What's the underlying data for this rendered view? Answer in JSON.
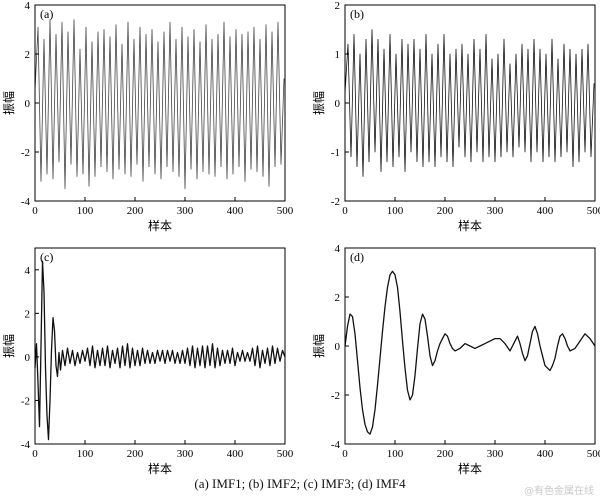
{
  "caption": "(a) IMF1; (b) IMF2; (c) IMF3; (d) IMF4",
  "watermark": "@有色金属在线",
  "chart_data": [
    {
      "type": "line",
      "panel_label": "(a)",
      "xlabel": "样本",
      "ylabel": "振幅",
      "xlim": [
        0,
        500
      ],
      "ylim": [
        -4,
        4
      ],
      "xticks": [
        0,
        100,
        200,
        300,
        400,
        500
      ],
      "yticks": [
        -4,
        -2,
        0,
        2,
        4
      ],
      "color": "#444444",
      "series": [
        {
          "x": [
            0,
            6,
            12,
            18,
            24,
            30,
            36,
            42,
            48,
            54,
            60,
            66,
            72,
            78,
            84,
            90,
            96,
            102,
            108,
            114,
            120,
            126,
            132,
            138,
            144,
            150,
            156,
            162,
            168,
            174,
            180,
            186,
            192,
            198,
            204,
            210,
            216,
            222,
            228,
            234,
            240,
            246,
            252,
            258,
            264,
            270,
            276,
            282,
            288,
            294,
            300,
            306,
            312,
            318,
            324,
            330,
            336,
            342,
            348,
            354,
            360,
            366,
            372,
            378,
            384,
            390,
            396,
            402,
            408,
            414,
            420,
            426,
            432,
            438,
            444,
            450,
            456,
            462,
            468,
            474,
            480,
            486,
            492,
            498
          ],
          "values": [
            0.5,
            3.1,
            -3.2,
            2.6,
            -2.9,
            3.4,
            -3.1,
            2.8,
            -2.4,
            3.3,
            -3.5,
            2.9,
            -2.5,
            3.4,
            -3.0,
            2.2,
            -2.9,
            3.1,
            -3.4,
            2.5,
            -3.0,
            2.9,
            -2.6,
            3.0,
            -2.8,
            2.7,
            -3.1,
            3.2,
            -2.7,
            2.4,
            -2.9,
            3.3,
            -3.0,
            2.6,
            -2.5,
            3.1,
            -3.2,
            2.8,
            -2.6,
            3.0,
            -2.9,
            2.5,
            -3.1,
            2.9,
            -2.6,
            3.3,
            -2.8,
            2.6,
            -3.0,
            3.1,
            -3.5,
            2.7,
            -2.7,
            3.0,
            -3.1,
            2.5,
            -2.8,
            3.2,
            -2.9,
            2.6,
            -3.0,
            2.8,
            -2.6,
            3.3,
            -3.1,
            2.7,
            -2.9,
            3.0,
            -2.6,
            2.8,
            -3.2,
            2.9,
            -2.7,
            3.1,
            -2.8,
            2.6,
            -3.0,
            3.2,
            -3.4,
            2.9,
            -2.6,
            3.3,
            -2.5,
            1.0
          ]
        }
      ]
    },
    {
      "type": "line",
      "panel_label": "(b)",
      "xlabel": "样本",
      "ylabel": "振幅",
      "xlim": [
        0,
        500
      ],
      "ylim": [
        -2,
        2
      ],
      "xticks": [
        0,
        100,
        200,
        300,
        400,
        500
      ],
      "yticks": [
        -2,
        -1,
        0,
        1,
        2
      ],
      "color": "#111111",
      "series": [
        {
          "x": [
            0,
            6,
            12,
            18,
            24,
            30,
            36,
            42,
            48,
            54,
            60,
            66,
            72,
            78,
            84,
            90,
            96,
            102,
            108,
            114,
            120,
            126,
            132,
            138,
            144,
            150,
            156,
            162,
            168,
            174,
            180,
            186,
            192,
            198,
            204,
            210,
            216,
            222,
            228,
            234,
            240,
            246,
            252,
            258,
            264,
            270,
            276,
            282,
            288,
            294,
            300,
            306,
            312,
            318,
            324,
            330,
            336,
            342,
            348,
            354,
            360,
            366,
            372,
            378,
            384,
            390,
            396,
            402,
            408,
            414,
            420,
            426,
            432,
            438,
            444,
            450,
            456,
            462,
            468,
            474,
            480,
            486,
            492,
            498
          ],
          "values": [
            0.2,
            1.2,
            -1.1,
            1.4,
            -1.3,
            1.0,
            -1.5,
            1.3,
            -1.2,
            1.5,
            -1.0,
            1.3,
            -1.4,
            1.1,
            -1.2,
            1.4,
            -1.3,
            1.0,
            -1.1,
            1.3,
            -1.4,
            1.2,
            -1.0,
            1.3,
            -1.2,
            1.1,
            -1.3,
            1.4,
            -1.2,
            1.0,
            -1.3,
            1.2,
            -1.1,
            1.4,
            -1.2,
            1.0,
            -1.3,
            1.1,
            -0.9,
            1.2,
            -1.1,
            1.0,
            -1.2,
            1.3,
            -1.0,
            1.1,
            -1.2,
            1.4,
            -1.1,
            0.9,
            -1.2,
            1.0,
            -1.1,
            1.3,
            -1.0,
            0.8,
            -1.1,
            1.0,
            -0.9,
            1.2,
            -1.0,
            1.1,
            -1.2,
            1.3,
            -1.0,
            1.1,
            -1.2,
            1.0,
            -1.1,
            1.3,
            -1.2,
            0.9,
            -1.1,
            1.2,
            -1.0,
            1.1,
            -1.3,
            1.0,
            -1.2,
            1.1,
            -1.0,
            1.2,
            -1.1,
            0.4
          ]
        }
      ]
    },
    {
      "type": "line",
      "panel_label": "(c)",
      "xlabel": "样本",
      "ylabel": "振幅",
      "xlim": [
        0,
        500
      ],
      "ylim": [
        -4,
        5
      ],
      "xticks": [
        0,
        100,
        200,
        300,
        400,
        500
      ],
      "yticks": [
        -4,
        -2,
        0,
        2,
        4
      ],
      "color": "#111111",
      "series": [
        {
          "x": [
            0,
            3,
            6,
            9,
            12,
            15,
            18,
            21,
            24,
            27,
            30,
            33,
            36,
            39,
            42,
            45,
            48,
            51,
            55,
            60,
            65,
            70,
            75,
            80,
            85,
            90,
            95,
            100,
            105,
            110,
            115,
            120,
            125,
            130,
            135,
            140,
            145,
            150,
            155,
            160,
            165,
            170,
            175,
            180,
            185,
            190,
            195,
            200,
            205,
            210,
            215,
            220,
            225,
            230,
            235,
            240,
            245,
            250,
            255,
            260,
            265,
            270,
            275,
            280,
            285,
            290,
            295,
            300,
            305,
            310,
            315,
            320,
            325,
            330,
            335,
            340,
            345,
            350,
            355,
            360,
            365,
            370,
            375,
            380,
            385,
            390,
            395,
            400,
            405,
            410,
            415,
            420,
            425,
            430,
            435,
            440,
            445,
            450,
            455,
            460,
            465,
            470,
            475,
            480,
            485,
            490,
            495,
            500
          ],
          "values": [
            -0.5,
            0.6,
            -1.2,
            -3.2,
            0.5,
            4.4,
            3.0,
            -0.5,
            -2.7,
            -3.8,
            -2.0,
            0.3,
            1.8,
            1.2,
            -0.4,
            -0.9,
            0.2,
            -0.6,
            0.3,
            -0.4,
            0.4,
            -0.3,
            0.3,
            -0.4,
            0.2,
            -0.3,
            0.3,
            -0.2,
            0.4,
            -0.4,
            0.5,
            -0.5,
            0.3,
            -0.4,
            0.4,
            -0.4,
            0.5,
            -0.5,
            0.3,
            -0.3,
            0.4,
            -0.5,
            0.5,
            -0.4,
            0.6,
            -0.5,
            0.4,
            -0.4,
            0.3,
            -0.4,
            0.4,
            -0.3,
            0.3,
            -0.3,
            0.2,
            -0.3,
            0.3,
            -0.2,
            0.3,
            -0.3,
            0.3,
            -0.2,
            0.3,
            -0.3,
            0.2,
            -0.3,
            0.3,
            -0.3,
            0.4,
            -0.4,
            0.5,
            -0.5,
            0.4,
            -0.4,
            0.5,
            -0.5,
            0.5,
            -0.4,
            0.6,
            -0.5,
            0.4,
            -0.4,
            0.3,
            -0.3,
            0.3,
            -0.3,
            0.4,
            -0.4,
            0.2,
            -0.2,
            0.3,
            -0.2,
            0.2,
            -0.2,
            0.4,
            -0.4,
            0.5,
            -0.5,
            0.3,
            -0.3,
            0.4,
            -0.4,
            0.5,
            -0.3,
            0.4,
            -0.2,
            0.3,
            0.0
          ]
        }
      ]
    },
    {
      "type": "line",
      "panel_label": "(d)",
      "xlabel": "样本",
      "ylabel": "振幅",
      "xlim": [
        0,
        500
      ],
      "ylim": [
        -4,
        4
      ],
      "xticks": [
        0,
        100,
        200,
        300,
        400,
        500
      ],
      "yticks": [
        -4,
        -2,
        0,
        2,
        4
      ],
      "color": "#111111",
      "series": [
        {
          "x": [
            0,
            5,
            10,
            15,
            20,
            25,
            30,
            35,
            40,
            45,
            50,
            55,
            60,
            65,
            70,
            75,
            80,
            85,
            90,
            95,
            100,
            105,
            110,
            115,
            120,
            125,
            130,
            135,
            140,
            145,
            150,
            155,
            160,
            165,
            170,
            175,
            180,
            185,
            190,
            195,
            200,
            205,
            210,
            215,
            220,
            230,
            240,
            250,
            260,
            270,
            280,
            290,
            300,
            310,
            320,
            330,
            340,
            345,
            350,
            355,
            360,
            365,
            370,
            375,
            380,
            385,
            390,
            395,
            400,
            405,
            410,
            415,
            420,
            425,
            430,
            435,
            440,
            445,
            450,
            460,
            470,
            480,
            490,
            500
          ],
          "values": [
            0.0,
            0.8,
            1.3,
            1.2,
            0.5,
            -0.6,
            -1.7,
            -2.6,
            -3.2,
            -3.5,
            -3.6,
            -3.3,
            -2.6,
            -1.6,
            -0.5,
            0.6,
            1.6,
            2.4,
            2.9,
            3.05,
            2.9,
            2.4,
            1.4,
            0.2,
            -0.9,
            -1.8,
            -2.2,
            -2.0,
            -1.2,
            -0.1,
            0.9,
            1.3,
            1.1,
            0.4,
            -0.4,
            -0.8,
            -0.6,
            -0.2,
            0.1,
            0.3,
            0.5,
            0.4,
            0.1,
            -0.1,
            -0.2,
            -0.1,
            0.1,
            0.0,
            -0.1,
            0.0,
            0.1,
            0.2,
            0.3,
            0.3,
            0.1,
            -0.2,
            0.2,
            0.4,
            0.1,
            -0.3,
            -0.6,
            -0.4,
            0.1,
            0.6,
            0.8,
            0.5,
            0.0,
            -0.4,
            -0.8,
            -0.9,
            -1.0,
            -0.8,
            -0.5,
            0.0,
            0.4,
            0.5,
            0.3,
            0.0,
            -0.2,
            -0.1,
            0.2,
            0.5,
            0.3,
            0.0
          ]
        }
      ]
    }
  ]
}
